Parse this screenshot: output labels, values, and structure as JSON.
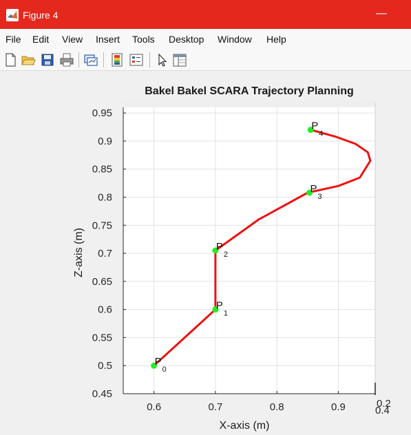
{
  "window": {
    "title": "Figure 4",
    "minimize_glyph": "—"
  },
  "menu": [
    "File",
    "Edit",
    "View",
    "Insert",
    "Tools",
    "Desktop",
    "Window",
    "Help"
  ],
  "toolbar": [
    "new-figure-icon",
    "open-file-icon",
    "save-icon",
    "print-icon",
    "link-plot-icon",
    "insert-colorbar-icon",
    "insert-legend-icon",
    "edit-plot-arrow-icon",
    "property-inspector-icon"
  ],
  "colors": {
    "titlebar": "#e4281e",
    "trajectory": "#ee1111",
    "waypoint": "#22ee22"
  },
  "chart_data": {
    "type": "line",
    "title": "Bakel Bakel SCARA Trajectory Planning",
    "xlabel": "X-axis (m)",
    "ylabel": "Z-axis (m)",
    "xlim": [
      0.55,
      0.96
    ],
    "ylim": [
      0.45,
      0.96
    ],
    "xticks": [
      "0.6",
      "0.7",
      "0.8",
      "0.9"
    ],
    "yticks": [
      "0.45",
      "0.5",
      "0.55",
      "0.6",
      "0.65",
      "0.7",
      "0.75",
      "0.8",
      "0.85",
      "0.9",
      "0.95"
    ],
    "depth_ticks": [
      "0.2",
      "0.4"
    ],
    "grid": true,
    "series": [
      {
        "x": [
          0.6,
          0.7,
          0.7,
          0.77,
          0.85,
          0.9,
          0.935,
          0.952,
          0.948,
          0.928,
          0.895,
          0.855
        ],
        "y": [
          0.5,
          0.6,
          0.705,
          0.76,
          0.808,
          0.82,
          0.835,
          0.865,
          0.88,
          0.895,
          0.908,
          0.92
        ]
      }
    ],
    "waypoints": [
      {
        "name": "P",
        "sub": "0",
        "x": 0.6,
        "y": 0.5
      },
      {
        "name": "P",
        "sub": "1",
        "x": 0.7,
        "y": 0.6
      },
      {
        "name": "P",
        "sub": "2",
        "x": 0.7,
        "y": 0.705
      },
      {
        "name": "P",
        "sub": "3",
        "x": 0.853,
        "y": 0.808
      },
      {
        "name": "P",
        "sub": "4",
        "x": 0.855,
        "y": 0.92
      }
    ]
  }
}
